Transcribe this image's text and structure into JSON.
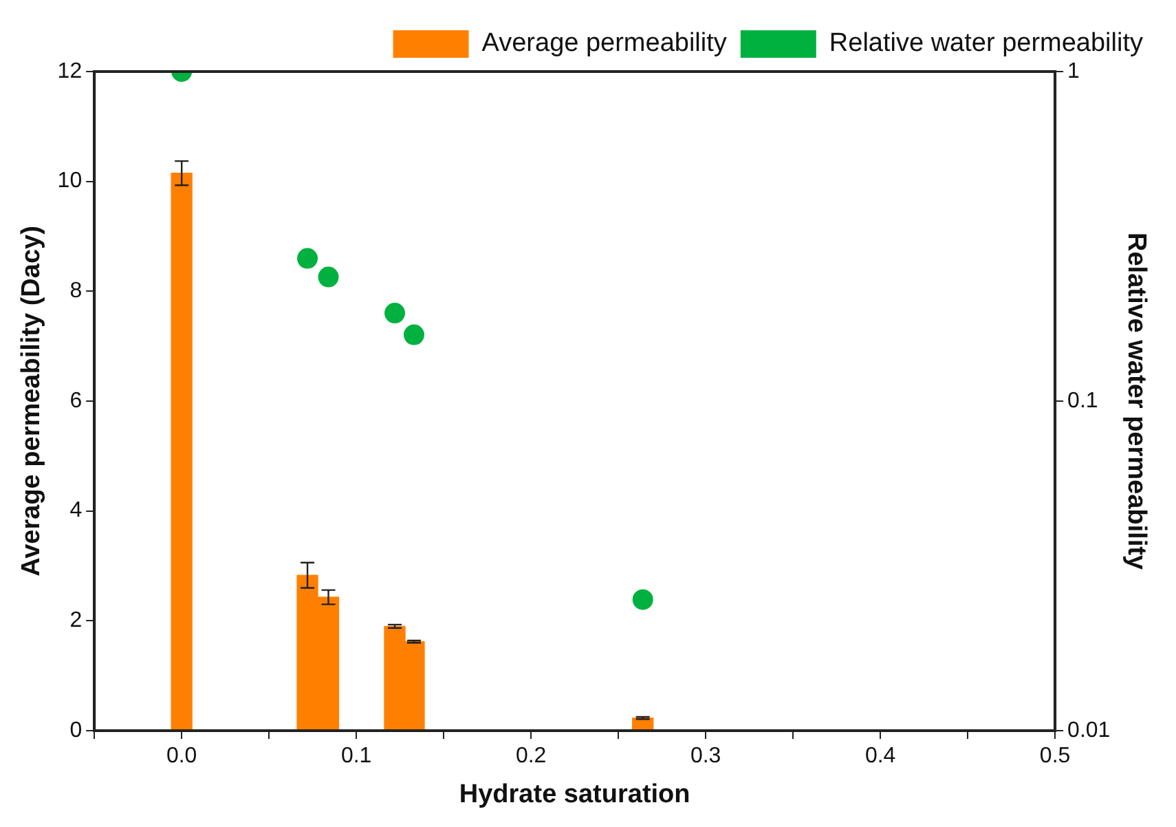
{
  "chart_data": {
    "type": "bar",
    "xlabel": "Hydrate saturation",
    "ylabel": "Average permeability (Dacy)",
    "y2label": "Relative water permeability",
    "x": [
      0,
      0.072,
      0.084,
      0.122,
      0.133,
      0.264
    ],
    "series": [
      {
        "name": "Average permeability",
        "color": "#ff8000",
        "values": [
          10.15,
          2.83,
          2.43,
          1.9,
          1.62,
          0.23
        ],
        "errors": [
          0.22,
          0.23,
          0.13,
          0.03,
          0.02,
          0.02
        ]
      },
      {
        "name": "Relative water permeability",
        "type": "scatter",
        "axis": "y2",
        "color": "#00b140",
        "marker": "circle",
        "values": [
          1.0,
          0.271,
          0.238,
          0.185,
          0.159,
          0.025
        ]
      }
    ],
    "xlim": [
      -0.05,
      0.5
    ],
    "xticks": [
      {
        "value": -0.05,
        "label": null
      },
      {
        "value": 0,
        "label": "0.0"
      },
      {
        "value": 0.05,
        "label": null
      },
      0.1,
      {
        "value": 0.15,
        "label": null
      },
      0.2,
      {
        "value": 0.25,
        "label": null
      },
      0.3,
      {
        "value": 0.35,
        "label": null
      },
      0.4,
      {
        "value": 0.45,
        "label": null
      },
      0.5
    ],
    "ylim": [
      0,
      12
    ],
    "yticks": [
      0,
      2,
      4,
      6,
      8,
      10,
      12
    ],
    "y2lim": [
      0.01,
      1
    ],
    "y2ticks": [
      0.01,
      0.1,
      1
    ],
    "log": "y2",
    "grid": false,
    "legend": "top right"
  }
}
